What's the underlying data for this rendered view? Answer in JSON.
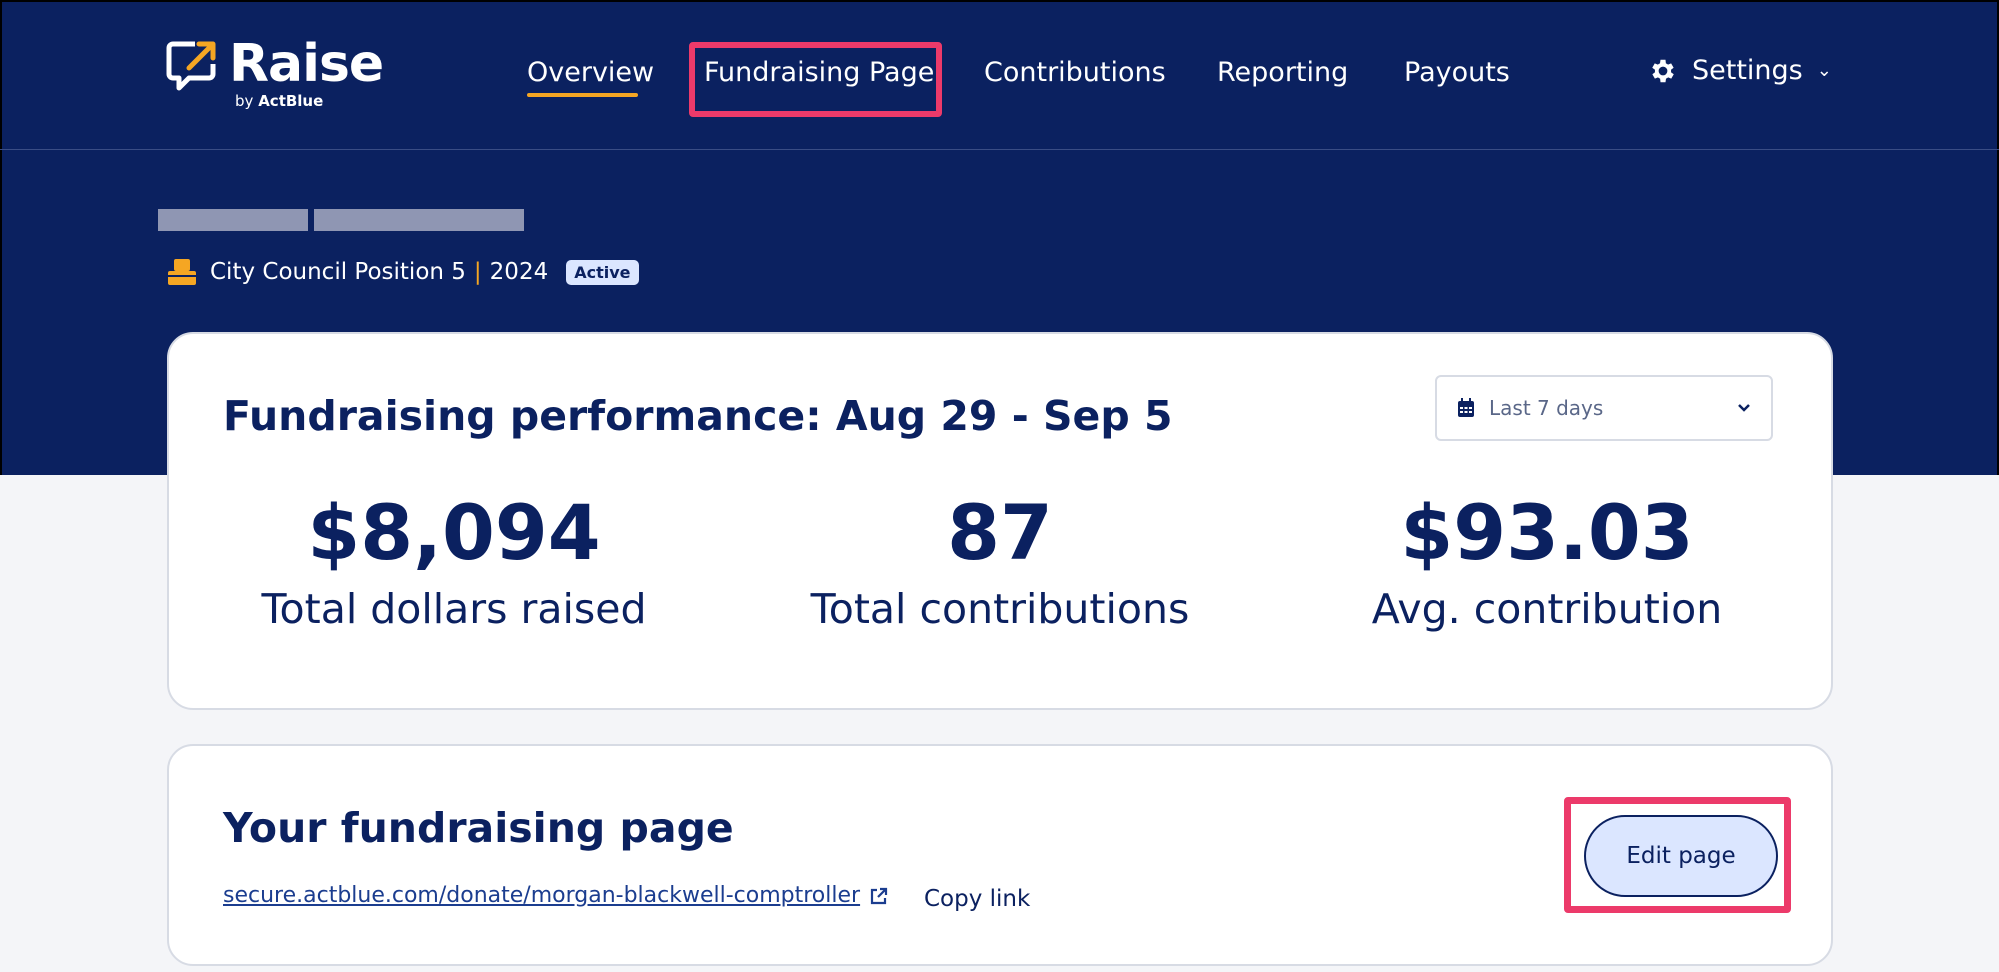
{
  "brand": {
    "name": "Raise",
    "sub_prefix": "by",
    "sub_brand": "ActBlue",
    "accent": "#f5a623",
    "navy": "#0b2160",
    "highlight": "#ec3a6a"
  },
  "nav": {
    "items": [
      {
        "label": "Overview",
        "active": true
      },
      {
        "label": "Fundraising Page",
        "active": false
      },
      {
        "label": "Contributions",
        "active": false
      },
      {
        "label": "Reporting",
        "active": false
      },
      {
        "label": "Payouts",
        "active": false
      }
    ],
    "settings_label": "Settings",
    "settings_icon": "gear-icon"
  },
  "candidate": {
    "office": "City Council Position 5",
    "separator": "|",
    "year": "2024",
    "status": "Active",
    "office_icon": "podium-icon"
  },
  "performance": {
    "title": "Fundraising performance: Aug 29 - Sep 5",
    "date_range": "Last 7 days",
    "stats": [
      {
        "value": "$8,094",
        "label": "Total dollars raised"
      },
      {
        "value": "87",
        "label": "Total contributions"
      },
      {
        "value": "$93.03",
        "label": "Avg. contribution"
      }
    ]
  },
  "fundraising_page": {
    "title": "Your fundraising page",
    "url": "secure.actblue.com/donate/morgan-blackwell-comptroller",
    "copy_label": "Copy link",
    "edit_label": "Edit page"
  }
}
